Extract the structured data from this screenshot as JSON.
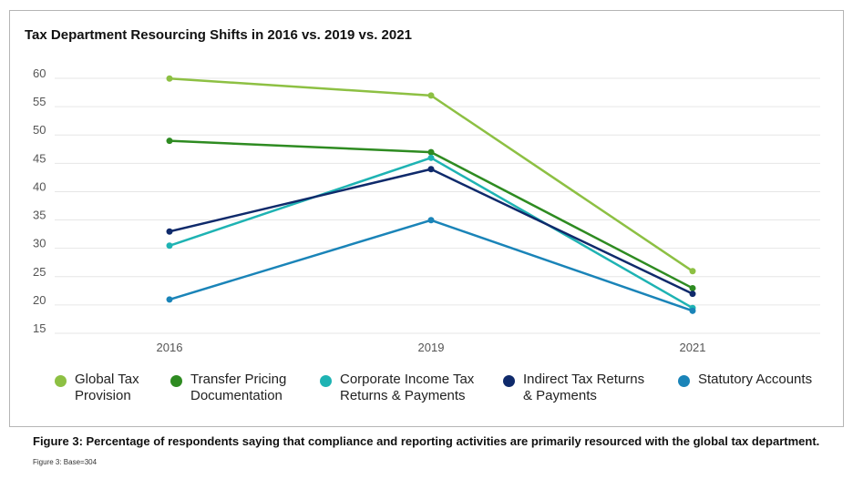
{
  "chart_data": {
    "type": "line",
    "title": "Tax Department Resourcing Shifts in 2016 vs. 2019 vs. 2021",
    "categories": [
      "2016",
      "2019",
      "2021"
    ],
    "ylim": [
      15,
      60
    ],
    "yticks": [
      60,
      55,
      50,
      45,
      40,
      35,
      30,
      25,
      20,
      15
    ],
    "grid": true,
    "legend_position": "bottom",
    "series": [
      {
        "name": "Global Tax Provision",
        "color": "#8dc043",
        "values": [
          59,
          56,
          25
        ]
      },
      {
        "name": "Transfer Pricing Documentation",
        "color": "#2e8b21",
        "values": [
          48,
          46,
          22
        ]
      },
      {
        "name": "Corporate Income Tax Returns & Payments",
        "color": "#1eb3b3",
        "values": [
          29.5,
          45,
          18.5
        ]
      },
      {
        "name": "Indirect Tax Returns & Payments",
        "color": "#0f2a6b",
        "values": [
          32,
          43,
          21
        ]
      },
      {
        "name": "Statutory Accounts",
        "color": "#1a84b8",
        "values": [
          20,
          34,
          18
        ]
      }
    ]
  },
  "legend": [
    {
      "line1": "Global Tax",
      "line2": "Provision"
    },
    {
      "line1": "Transfer Pricing",
      "line2": "Documentation"
    },
    {
      "line1": "Corporate Income Tax",
      "line2": "Returns & Payments"
    },
    {
      "line1": "Indirect Tax Returns",
      "line2": "& Payments"
    },
    {
      "line1": "Statutory Accounts",
      "line2": ""
    }
  ],
  "caption": "Figure 3: Percentage of respondents saying that compliance and reporting activities are primarily resourced with the global tax department.",
  "footnote": "Figure 3: Base=304"
}
